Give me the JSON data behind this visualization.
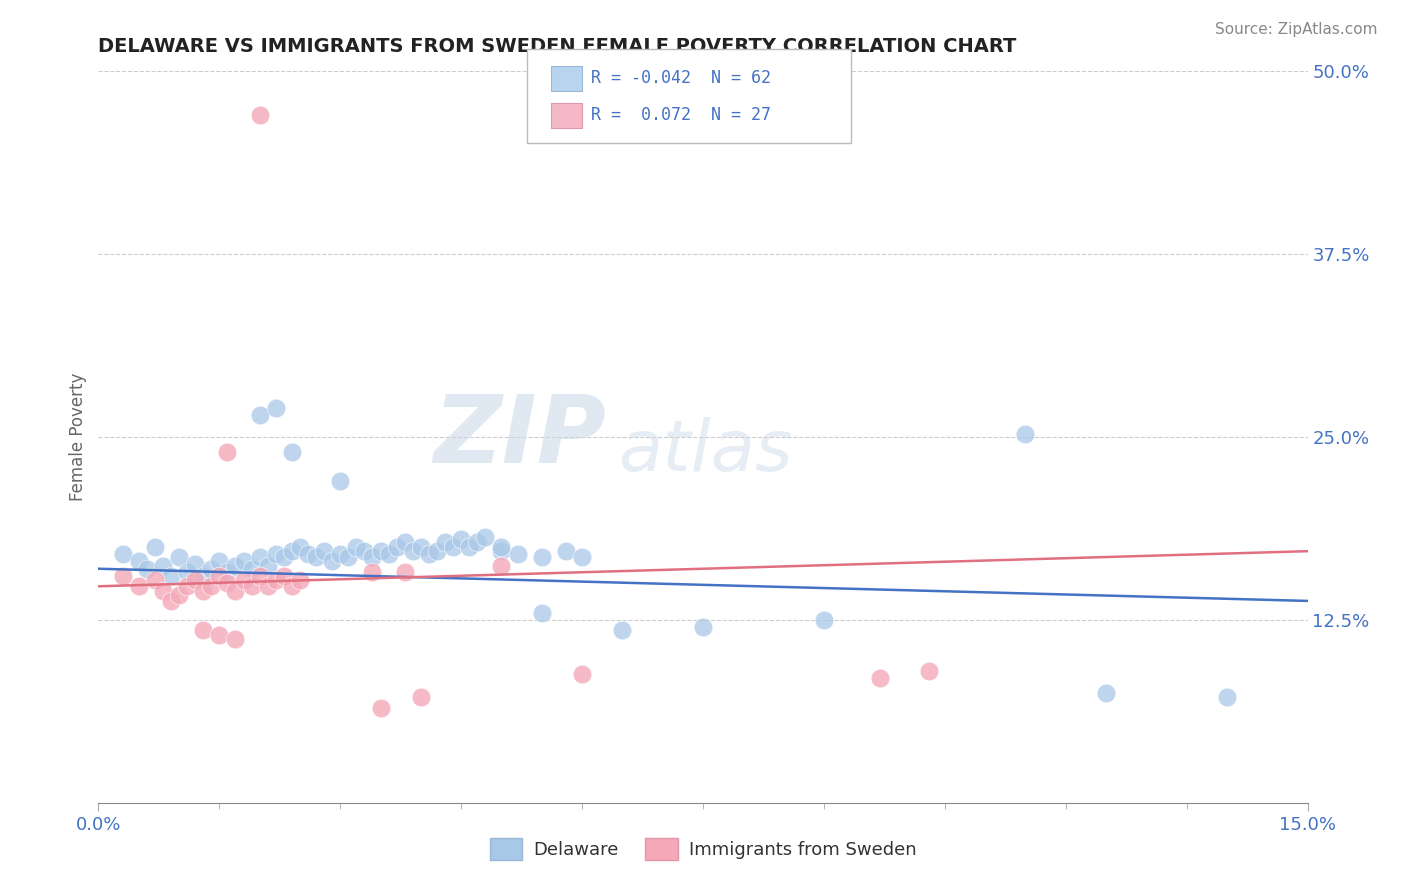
{
  "title": "DELAWARE VS IMMIGRANTS FROM SWEDEN FEMALE POVERTY CORRELATION CHART",
  "source": "Source: ZipAtlas.com",
  "ylabel_label": "Female Poverty",
  "x_min": 0.0,
  "x_max": 0.15,
  "y_min": 0.0,
  "y_max": 0.5,
  "x_ticks": [
    0.0,
    0.15
  ],
  "x_tick_labels": [
    "0.0%",
    "15.0%"
  ],
  "y_ticks": [
    0.125,
    0.25,
    0.375,
    0.5
  ],
  "y_tick_labels": [
    "12.5%",
    "25.0%",
    "37.5%",
    "50.0%"
  ],
  "legend_label1": "Delaware",
  "legend_label2": "Immigrants from Sweden",
  "blue_color": "#a8c8e8",
  "pink_color": "#f4a8b8",
  "line_blue": "#4472c4",
  "line_pink": "#e07080",
  "tick_color": "#4472c4",
  "watermark_zip": "ZIP",
  "watermark_atlas": "atlas",
  "blue_dots": [
    [
      0.003,
      0.17
    ],
    [
      0.005,
      0.165
    ],
    [
      0.006,
      0.16
    ],
    [
      0.007,
      0.175
    ],
    [
      0.008,
      0.162
    ],
    [
      0.009,
      0.155
    ],
    [
      0.01,
      0.168
    ],
    [
      0.011,
      0.158
    ],
    [
      0.012,
      0.163
    ],
    [
      0.013,
      0.155
    ],
    [
      0.014,
      0.16
    ],
    [
      0.015,
      0.165
    ],
    [
      0.016,
      0.158
    ],
    [
      0.017,
      0.162
    ],
    [
      0.018,
      0.165
    ],
    [
      0.019,
      0.16
    ],
    [
      0.02,
      0.168
    ],
    [
      0.021,
      0.162
    ],
    [
      0.022,
      0.17
    ],
    [
      0.023,
      0.168
    ],
    [
      0.024,
      0.172
    ],
    [
      0.025,
      0.175
    ],
    [
      0.026,
      0.17
    ],
    [
      0.027,
      0.168
    ],
    [
      0.028,
      0.172
    ],
    [
      0.029,
      0.165
    ],
    [
      0.03,
      0.17
    ],
    [
      0.031,
      0.168
    ],
    [
      0.032,
      0.175
    ],
    [
      0.033,
      0.172
    ],
    [
      0.034,
      0.168
    ],
    [
      0.035,
      0.172
    ],
    [
      0.036,
      0.17
    ],
    [
      0.037,
      0.175
    ],
    [
      0.038,
      0.178
    ],
    [
      0.039,
      0.172
    ],
    [
      0.04,
      0.175
    ],
    [
      0.041,
      0.17
    ],
    [
      0.042,
      0.172
    ],
    [
      0.043,
      0.178
    ],
    [
      0.044,
      0.175
    ],
    [
      0.045,
      0.18
    ],
    [
      0.046,
      0.175
    ],
    [
      0.047,
      0.178
    ],
    [
      0.048,
      0.182
    ],
    [
      0.02,
      0.265
    ],
    [
      0.022,
      0.27
    ],
    [
      0.024,
      0.24
    ],
    [
      0.03,
      0.22
    ],
    [
      0.05,
      0.172
    ],
    [
      0.052,
      0.17
    ],
    [
      0.055,
      0.168
    ],
    [
      0.058,
      0.172
    ],
    [
      0.06,
      0.168
    ],
    [
      0.05,
      0.175
    ],
    [
      0.055,
      0.13
    ],
    [
      0.065,
      0.118
    ],
    [
      0.075,
      0.12
    ],
    [
      0.09,
      0.125
    ],
    [
      0.115,
      0.252
    ],
    [
      0.125,
      0.075
    ],
    [
      0.14,
      0.072
    ]
  ],
  "pink_dots": [
    [
      0.003,
      0.155
    ],
    [
      0.005,
      0.148
    ],
    [
      0.007,
      0.152
    ],
    [
      0.008,
      0.145
    ],
    [
      0.009,
      0.138
    ],
    [
      0.01,
      0.142
    ],
    [
      0.011,
      0.148
    ],
    [
      0.012,
      0.152
    ],
    [
      0.013,
      0.145
    ],
    [
      0.014,
      0.148
    ],
    [
      0.015,
      0.155
    ],
    [
      0.016,
      0.15
    ],
    [
      0.017,
      0.145
    ],
    [
      0.018,
      0.152
    ],
    [
      0.019,
      0.148
    ],
    [
      0.02,
      0.155
    ],
    [
      0.021,
      0.148
    ],
    [
      0.022,
      0.152
    ],
    [
      0.023,
      0.155
    ],
    [
      0.024,
      0.148
    ],
    [
      0.025,
      0.152
    ],
    [
      0.016,
      0.24
    ],
    [
      0.013,
      0.118
    ],
    [
      0.015,
      0.115
    ],
    [
      0.017,
      0.112
    ],
    [
      0.02,
      0.47
    ],
    [
      0.034,
      0.158
    ],
    [
      0.038,
      0.158
    ],
    [
      0.05,
      0.162
    ],
    [
      0.06,
      0.088
    ],
    [
      0.097,
      0.085
    ],
    [
      0.103,
      0.09
    ],
    [
      0.04,
      0.072
    ],
    [
      0.035,
      0.065
    ]
  ],
  "blue_line_y0": 0.16,
  "blue_line_y1": 0.138,
  "pink_line_y0": 0.148,
  "pink_line_y1": 0.172
}
